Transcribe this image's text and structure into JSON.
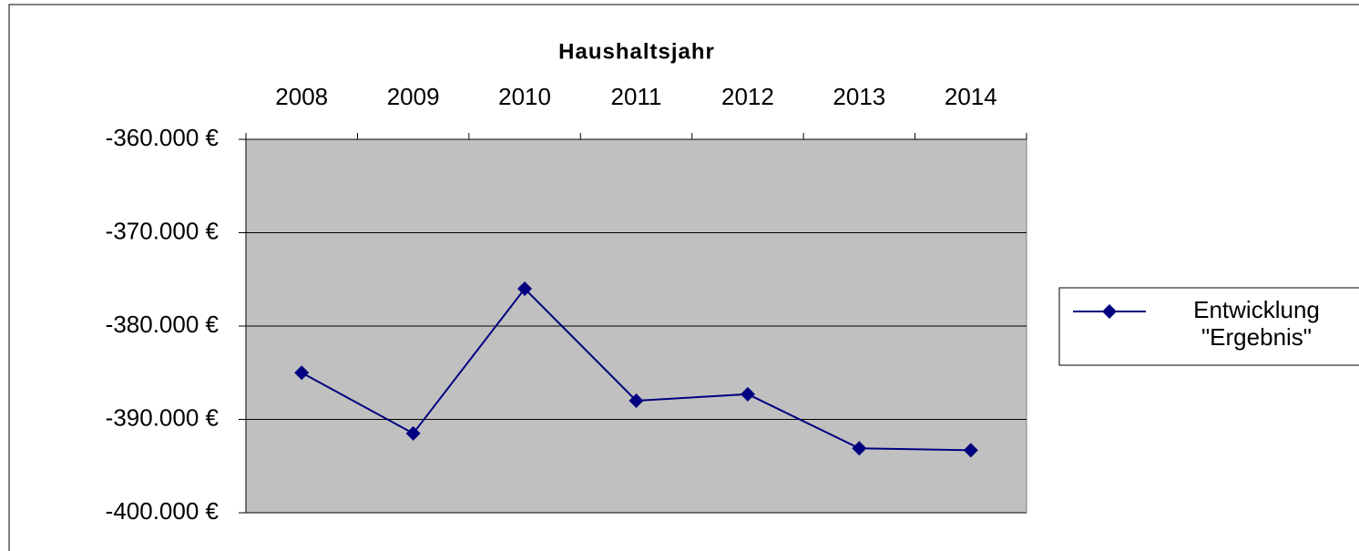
{
  "chart_data": {
    "type": "line",
    "title": "Haushaltsjahr",
    "categories": [
      "2008",
      "2009",
      "2010",
      "2011",
      "2012",
      "2013",
      "2014"
    ],
    "series": [
      {
        "name": "Entwicklung \"Ergebnis\"",
        "color": "#000080",
        "values": [
          -385000,
          -391500,
          -376000,
          -388000,
          -387300,
          -393100,
          -393300
        ]
      }
    ],
    "ylim": [
      -400000,
      -360000
    ],
    "yticks": [
      {
        "value": -400000,
        "label": "-400.000 €"
      },
      {
        "value": -390000,
        "label": "-390.000 €"
      },
      {
        "value": -380000,
        "label": "-380.000 €"
      },
      {
        "value": -370000,
        "label": "-370.000 €"
      },
      {
        "value": -360000,
        "label": "-360.000 €"
      }
    ],
    "grid": true,
    "plot_background": "#c0c0c0",
    "legend": "right"
  }
}
